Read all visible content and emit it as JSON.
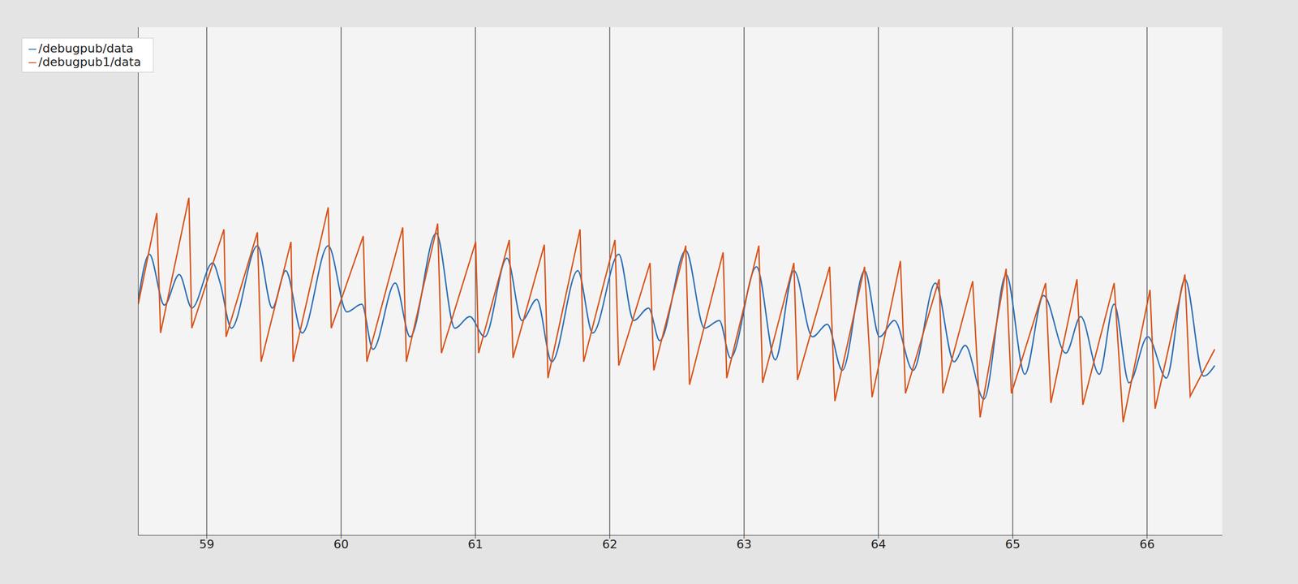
{
  "chart_data": {
    "type": "line",
    "xlim": [
      58.49,
      66.56
    ],
    "xticks": [
      59,
      60,
      61,
      62,
      63,
      64,
      65,
      66
    ],
    "ylim": [
      -2.5,
      2.8
    ],
    "yticks": [
      -2,
      -1,
      0,
      1,
      2
    ],
    "grid": true,
    "legend": "upper left",
    "tick_labels": "x",
    "series": [
      {
        "name": "/debugpub/data",
        "color": "#2c6fb7",
        "x": [
          58.49,
          58.573,
          58.684,
          58.795,
          58.889,
          59.044,
          59.1,
          59.183,
          59.377,
          59.488,
          59.588,
          59.71,
          59.904,
          60.043,
          60.154,
          60.237,
          60.403,
          60.514,
          60.708,
          60.847,
          60.958,
          61.069,
          61.235,
          61.346,
          61.457,
          61.568,
          61.762,
          61.873,
          62.067,
          62.178,
          62.289,
          62.372,
          62.566,
          62.705,
          62.816,
          62.899,
          63.093,
          63.232,
          63.371,
          63.509,
          63.62,
          63.731,
          63.897,
          64.008,
          64.119,
          64.258,
          64.424,
          64.563,
          64.646,
          64.785,
          64.951,
          65.09,
          65.229,
          65.395,
          65.506,
          65.644,
          65.755,
          65.866,
          66.005,
          66.144,
          66.282,
          66.421,
          66.504
        ],
        "values": [
          -0.04,
          0.43,
          -0.1,
          0.22,
          -0.13,
          0.34,
          0.13,
          -0.34,
          0.52,
          -0.13,
          0.26,
          -0.39,
          0.52,
          -0.17,
          -0.09,
          -0.56,
          0.13,
          -0.43,
          0.65,
          -0.34,
          -0.22,
          -0.43,
          0.39,
          -0.26,
          -0.04,
          -0.69,
          0.26,
          -0.39,
          0.43,
          -0.26,
          -0.13,
          -0.47,
          0.47,
          -0.34,
          -0.26,
          -0.65,
          0.3,
          -0.67,
          0.26,
          -0.43,
          -0.3,
          -0.78,
          0.26,
          -0.43,
          -0.26,
          -0.78,
          0.13,
          -0.69,
          -0.52,
          -1.08,
          0.22,
          -0.82,
          0.0,
          -0.6,
          -0.22,
          -0.82,
          -0.09,
          -0.91,
          -0.43,
          -0.86,
          0.17,
          -0.84,
          -0.73
        ]
      },
      {
        "name": "/debugpub1/data",
        "color": "#d95319",
        "x": [
          58.49,
          58.628,
          58.656,
          58.867,
          58.889,
          59.128,
          59.144,
          59.377,
          59.405,
          59.627,
          59.643,
          59.904,
          59.927,
          60.165,
          60.192,
          60.459,
          60.486,
          60.719,
          60.747,
          61.002,
          61.024,
          61.252,
          61.28,
          61.513,
          61.54,
          61.779,
          61.806,
          62.039,
          62.067,
          62.3,
          62.328,
          62.566,
          62.594,
          62.844,
          62.871,
          63.11,
          63.138,
          63.371,
          63.398,
          63.637,
          63.676,
          63.897,
          63.953,
          64.164,
          64.202,
          64.452,
          64.48,
          64.702,
          64.757,
          64.951,
          64.99,
          65.245,
          65.284,
          65.478,
          65.522,
          65.755,
          65.822,
          66.022,
          66.06,
          66.282,
          66.321,
          66.504
        ],
        "values": [
          -0.09,
          0.86,
          -0.39,
          1.02,
          -0.34,
          0.69,
          -0.43,
          0.66,
          -0.69,
          0.56,
          -0.69,
          0.92,
          -0.34,
          0.62,
          -0.69,
          0.71,
          -0.69,
          0.75,
          -0.6,
          0.56,
          -0.6,
          0.58,
          -0.65,
          0.53,
          -0.86,
          0.69,
          -0.69,
          0.58,
          -0.73,
          0.34,
          -0.78,
          0.52,
          -0.93,
          0.45,
          -0.86,
          0.52,
          -0.91,
          0.34,
          -0.88,
          0.3,
          -1.1,
          0.3,
          -1.06,
          0.36,
          -1.02,
          0.17,
          -1.02,
          0.15,
          -1.27,
          0.28,
          -1.02,
          0.13,
          -1.12,
          0.17,
          -1.14,
          0.13,
          -1.32,
          0.06,
          -1.18,
          0.22,
          -1.05,
          -0.56
        ]
      }
    ]
  }
}
